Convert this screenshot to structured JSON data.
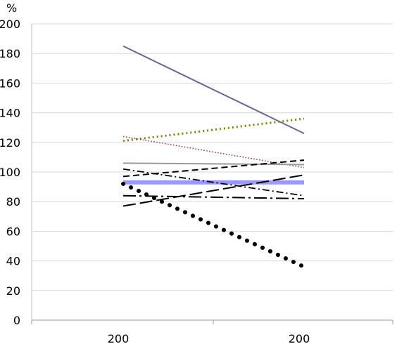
{
  "chart_data": {
    "type": "line",
    "ylabel": "%",
    "categories": [
      "200",
      "200"
    ],
    "ylim": [
      0,
      200
    ],
    "yticks": [
      0,
      20,
      40,
      60,
      80,
      100,
      120,
      140,
      160,
      180,
      200
    ],
    "grid": true,
    "legend": "none",
    "series": [
      {
        "values": [
          185,
          126
        ],
        "color": "#666699",
        "style": "solid"
      },
      {
        "values": [
          121,
          136
        ],
        "color": "#808000",
        "style": "dotted"
      },
      {
        "values": [
          124,
          103
        ],
        "color": "#993366",
        "style": "dotted-thin"
      },
      {
        "values": [
          106,
          105
        ],
        "color": "#999999",
        "style": "solid"
      },
      {
        "values": [
          93,
          93
        ],
        "color": "#9999ff",
        "style": "solid-thick"
      },
      {
        "values": [
          97,
          108
        ],
        "color": "#000000",
        "style": "dashed"
      },
      {
        "values": [
          102,
          84
        ],
        "color": "#000000",
        "style": "dash-dot"
      },
      {
        "values": [
          77,
          98
        ],
        "color": "#000000",
        "style": "long-dash"
      },
      {
        "values": [
          84,
          82
        ],
        "color": "#000000",
        "style": "long-dash-dot"
      },
      {
        "values": [
          92,
          36
        ],
        "color": "#000000",
        "style": "round-dot"
      }
    ]
  }
}
